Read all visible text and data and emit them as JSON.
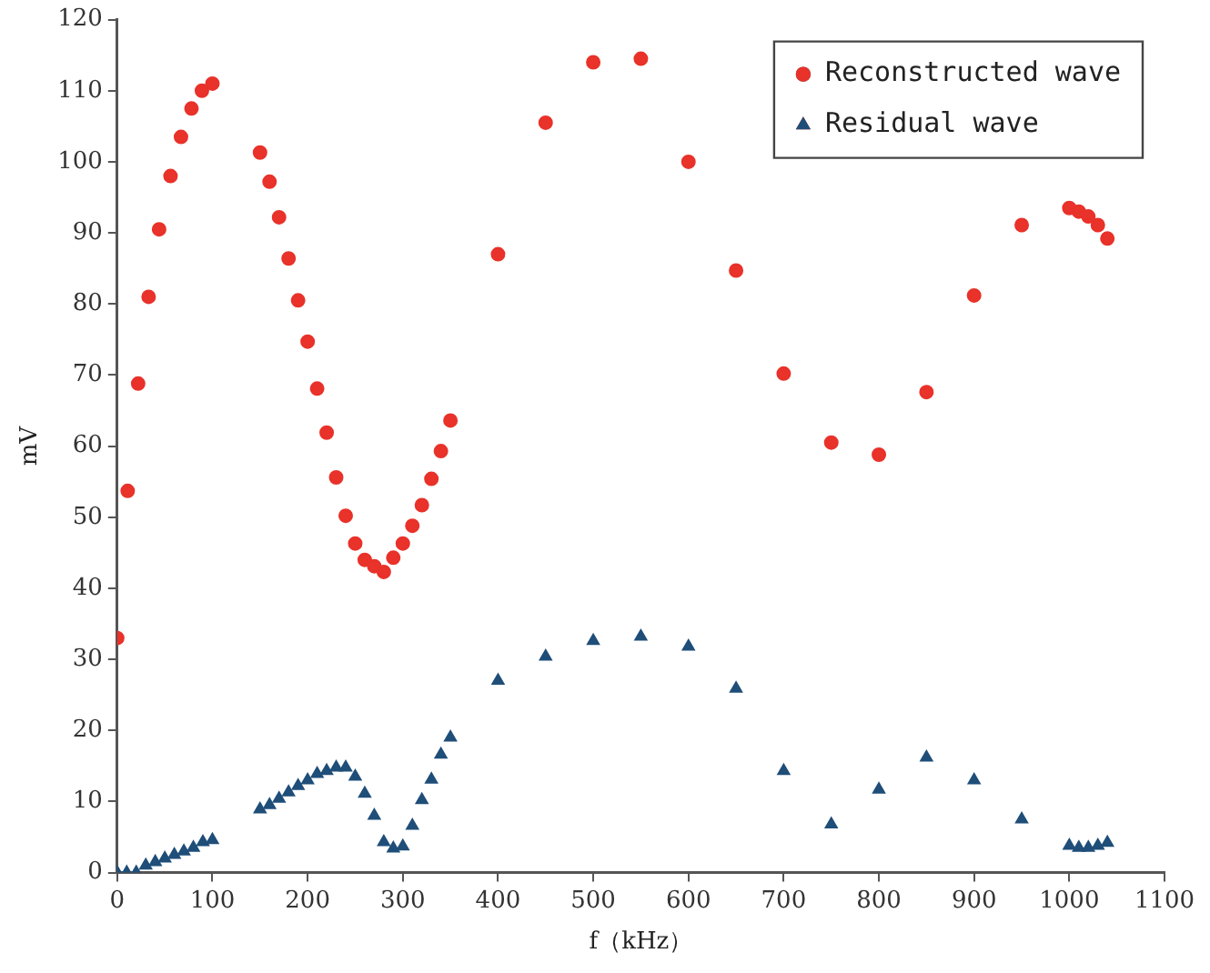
{
  "chart_data": {
    "type": "scatter",
    "xlabel": "f（kHz）",
    "ylabel": "mV",
    "xlim": [
      0,
      1100
    ],
    "xticks": [
      0,
      100,
      200,
      300,
      400,
      500,
      600,
      700,
      800,
      900,
      1000,
      1100
    ],
    "ylim": [
      0,
      120
    ],
    "yticks": [
      0,
      10,
      20,
      30,
      40,
      50,
      60,
      70,
      80,
      90,
      100,
      110,
      120
    ],
    "grid": false,
    "legend": "top right",
    "series": [
      {
        "name": "Reconstructed wave",
        "color": "#e8322a",
        "marker": "circle",
        "x": [
          0,
          11,
          22,
          33,
          44,
          56,
          67,
          78,
          89,
          100,
          150,
          160,
          170,
          180,
          190,
          200,
          210,
          220,
          230,
          240,
          250,
          260,
          270,
          280,
          290,
          300,
          310,
          320,
          330,
          340,
          350,
          400,
          450,
          500,
          550,
          600,
          650,
          700,
          750,
          800,
          850,
          900,
          950,
          1000,
          1010,
          1020,
          1030,
          1040
        ],
        "values": [
          33,
          53.7,
          68.8,
          81,
          90.5,
          98,
          103.5,
          107.5,
          110,
          111,
          101.3,
          97.2,
          92.2,
          86.4,
          80.5,
          74.7,
          68.1,
          61.9,
          55.6,
          50.2,
          46.3,
          44,
          43.1,
          42.3,
          44.3,
          46.3,
          48.8,
          51.7,
          55.4,
          59.3,
          63.6,
          87,
          105.5,
          114,
          114.5,
          100,
          84.7,
          70.2,
          60.5,
          58.8,
          67.6,
          81.2,
          91.1,
          93.5,
          93,
          92.3,
          91.1,
          89.2
        ]
      },
      {
        "name": "Residual wave",
        "color": "#1f4e79",
        "marker": "triangle",
        "x": [
          0,
          10,
          20,
          30,
          40,
          50,
          60,
          70,
          80,
          90,
          100,
          150,
          160,
          170,
          180,
          190,
          200,
          210,
          220,
          230,
          240,
          250,
          260,
          270,
          280,
          290,
          300,
          310,
          320,
          330,
          340,
          350,
          400,
          450,
          500,
          550,
          600,
          650,
          700,
          750,
          800,
          850,
          900,
          950,
          1000,
          1010,
          1020,
          1030,
          1040
        ],
        "values": [
          0,
          0,
          0,
          1,
          1.5,
          2,
          2.5,
          3,
          3.5,
          4.3,
          4.6,
          8.9,
          9.5,
          10.4,
          11.3,
          12.2,
          13,
          13.9,
          14.3,
          14.8,
          14.8,
          13.5,
          11.1,
          8,
          4.3,
          3.4,
          3.7,
          6.6,
          10.2,
          13.1,
          16.6,
          19,
          27,
          30.4,
          32.6,
          33.2,
          31.8,
          25.9,
          14.3,
          6.8,
          11.7,
          16.2,
          13,
          7.5,
          3.8,
          3.5,
          3.5,
          3.8,
          4.2
        ]
      }
    ]
  }
}
